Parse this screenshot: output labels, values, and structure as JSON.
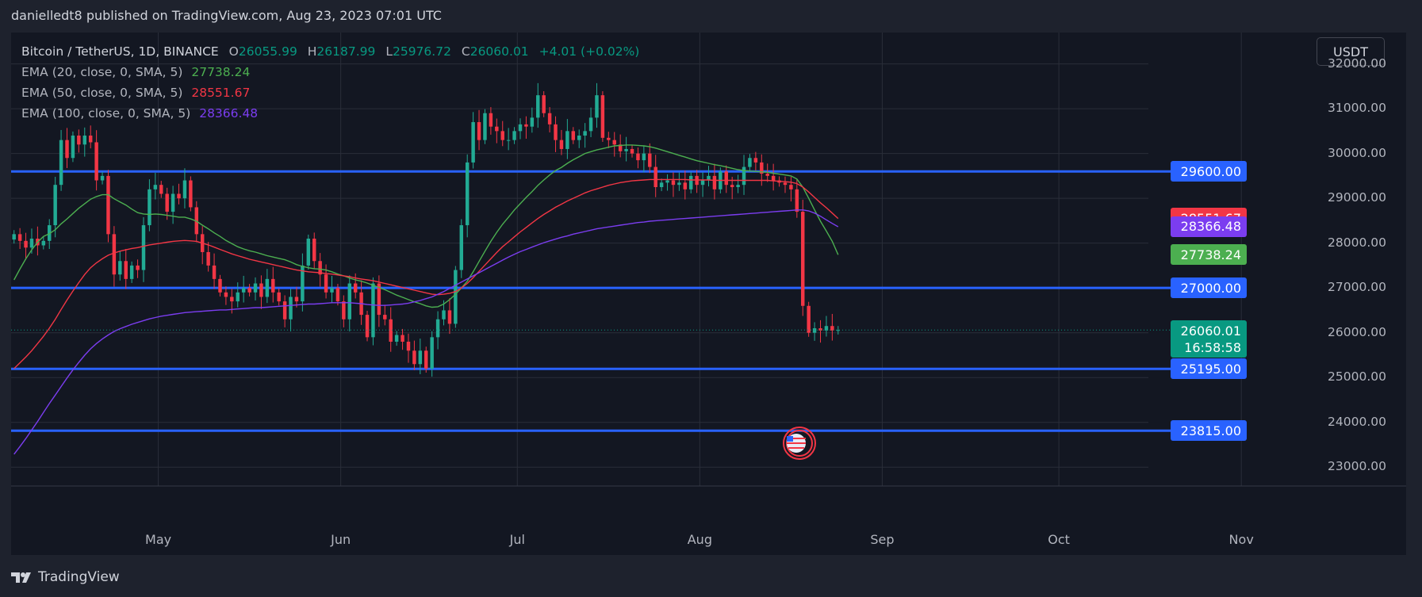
{
  "header": {
    "publisher": "danielledt8 published on TradingView.com, Aug 23, 2023 07:01 UTC"
  },
  "legend": {
    "symbol": "Bitcoin / TetherUS, 1D, BINANCE",
    "ohlc": [
      {
        "k": "O",
        "v": "26055.99"
      },
      {
        "k": "H",
        "v": "26187.99"
      },
      {
        "k": "L",
        "v": "25976.72"
      },
      {
        "k": "C",
        "v": "26060.01"
      }
    ],
    "change": "+4.01 (+0.02%)",
    "emas": [
      {
        "label": "EMA (20, close, 0, SMA, 5)",
        "value": "27738.24",
        "color": "#4caf50"
      },
      {
        "label": "EMA (50, close, 0, SMA, 5)",
        "value": "28551.67",
        "color": "#f23645"
      },
      {
        "label": "EMA (100, close, 0, SMA, 5)",
        "value": "28366.48",
        "color": "#7b3df0"
      }
    ]
  },
  "currency": "USDT",
  "footer": {
    "brand": "TradingView"
  },
  "colors": {
    "up": "#22ab94",
    "down": "#f23645",
    "level": "#2962ff",
    "background": "#131722",
    "grid": "#2a2e39"
  },
  "chart_data": {
    "type": "candlestick",
    "symbol": "BTCUSDT",
    "timeframe": "1D",
    "y_ticks": [
      "32000.00",
      "31000.00",
      "30000.00",
      "29000.00",
      "28000.00",
      "27000.00",
      "26000.00",
      "25000.00",
      "24000.00",
      "23000.00"
    ],
    "y_range": [
      22580,
      32700
    ],
    "x_range": [
      "2023-04-06",
      "2023-11-29"
    ],
    "x_ticks": [
      {
        "label": "May",
        "date": "2023-05-01"
      },
      {
        "label": "Jun",
        "date": "2023-06-01"
      },
      {
        "label": "Jul",
        "date": "2023-07-01"
      },
      {
        "label": "Aug",
        "date": "2023-08-01"
      },
      {
        "label": "Sep",
        "date": "2023-09-01"
      },
      {
        "label": "Oct",
        "date": "2023-10-01"
      },
      {
        "label": "Nov",
        "date": "2023-11-01"
      }
    ],
    "horizontal_levels": [
      {
        "value": 29600,
        "label": "29600.00"
      },
      {
        "value": 27000,
        "label": "27000.00"
      },
      {
        "value": 25195,
        "label": "25195.00"
      },
      {
        "value": 23815,
        "label": "23815.00"
      }
    ],
    "price_tags": [
      {
        "value": 28551.67,
        "label": "28551.67",
        "color": "#f23645"
      },
      {
        "value": 28366.48,
        "label": "28366.48",
        "color": "#7b3df0"
      },
      {
        "value": 27738.24,
        "label": "27738.24",
        "color": "#4caf50"
      }
    ],
    "last_price": {
      "value": 26060.01,
      "label": "26060.01",
      "countdown": "16:58:58",
      "color": "#089981"
    },
    "closes": [
      28200,
      28050,
      27900,
      28100,
      27950,
      28050,
      28400,
      29300,
      30300,
      29900,
      30400,
      30200,
      30400,
      30250,
      29400,
      29500,
      28200,
      27300,
      27600,
      27200,
      27500,
      27400,
      28400,
      29200,
      29300,
      29100,
      28700,
      29100,
      29000,
      29400,
      28800,
      28200,
      27800,
      27500,
      27200,
      26900,
      26800,
      26700,
      26900,
      27000,
      26900,
      27100,
      26800,
      27200,
      26900,
      26700,
      26300,
      26800,
      26700,
      27500,
      28100,
      27600,
      27300,
      26900,
      27000,
      26700,
      26300,
      27100,
      26900,
      26400,
      25900,
      27100,
      26400,
      26300,
      25800,
      25950,
      25800,
      25600,
      25300,
      25600,
      25200,
      25900,
      26300,
      26500,
      26200,
      27400,
      28400,
      29800,
      30700,
      30300,
      30900,
      30600,
      30500,
      30300,
      30300,
      30500,
      30650,
      30600,
      30800,
      31300,
      30900,
      30650,
      30300,
      30100,
      30500,
      30300,
      30400,
      30500,
      30800,
      31300,
      30350,
      30300,
      30200,
      30050,
      30100,
      30000,
      29850,
      30000,
      29700,
      29250,
      29350,
      29400,
      29300,
      29350,
      29200,
      29500,
      29300,
      29400,
      29500,
      29200,
      29600,
      29300,
      29250,
      29300,
      29700,
      29900,
      29800,
      29550,
      29500,
      29400,
      29350,
      29300,
      29200,
      28700,
      26600,
      26000,
      26100,
      26050,
      26150,
      26050,
      26060
    ],
    "ema20": [
      27180,
      27420,
      27650,
      27850,
      28020,
      28150,
      28210,
      28300,
      28430,
      28540,
      28660,
      28780,
      28880,
      28980,
      29040,
      29080,
      29080,
      28990,
      28920,
      28850,
      28760,
      28680,
      28650,
      28640,
      28650,
      28640,
      28620,
      28600,
      28580,
      28580,
      28540,
      28490,
      28400,
      28320,
      28230,
      28150,
      28060,
      27990,
      27920,
      27870,
      27830,
      27800,
      27760,
      27720,
      27690,
      27660,
      27630,
      27580,
      27520,
      27480,
      27450,
      27430,
      27420,
      27400,
      27360,
      27310,
      27270,
      27220,
      27180,
      27150,
      27110,
      27060,
      27010,
      26960,
      26900,
      26840,
      26790,
      26740,
      26690,
      26650,
      26600,
      26570,
      26580,
      26640,
      26740,
      26860,
      27000,
      27150,
      27360,
      27590,
      27820,
      28040,
      28240,
      28420,
      28580,
      28740,
      28880,
      29020,
      29150,
      29290,
      29410,
      29520,
      29620,
      29690,
      29780,
      29860,
      29930,
      30000,
      30040,
      30080,
      30110,
      30140,
      30170,
      30180,
      30190,
      30190,
      30180,
      30170,
      30150,
      30120,
      30080,
      30040,
      30000,
      29960,
      29920,
      29880,
      29840,
      29810,
      29780,
      29750,
      29730,
      29700,
      29670,
      29640,
      29620,
      29610,
      29600,
      29590,
      29580,
      29560,
      29540,
      29520,
      29500,
      29430,
      29250,
      29000,
      28740,
      28490,
      28270,
      28040,
      27740
    ],
    "ema50": [
      25200,
      25330,
      25460,
      25600,
      25760,
      25920,
      26100,
      26300,
      26520,
      26730,
      26930,
      27120,
      27300,
      27450,
      27560,
      27650,
      27730,
      27780,
      27820,
      27850,
      27880,
      27900,
      27930,
      27960,
      27980,
      28000,
      28020,
      28040,
      28050,
      28060,
      28050,
      28040,
      28000,
      27960,
      27910,
      27860,
      27810,
      27760,
      27720,
      27680,
      27640,
      27610,
      27580,
      27550,
      27520,
      27490,
      27460,
      27430,
      27400,
      27380,
      27360,
      27350,
      27340,
      27320,
      27310,
      27290,
      27270,
      27250,
      27220,
      27200,
      27180,
      27160,
      27130,
      27100,
      27070,
      27040,
      27010,
      26980,
      26950,
      26920,
      26890,
      26860,
      26850,
      26860,
      26880,
      26920,
      27000,
      27100,
      27230,
      27370,
      27510,
      27650,
      27790,
      27920,
      28030,
      28140,
      28250,
      28350,
      28450,
      28550,
      28640,
      28720,
      28800,
      28870,
      28940,
      29000,
      29060,
      29120,
      29170,
      29210,
      29250,
      29290,
      29320,
      29350,
      29370,
      29390,
      29400,
      29410,
      29420,
      29420,
      29420,
      29420,
      29420,
      29420,
      29420,
      29410,
      29410,
      29410,
      29410,
      29400,
      29400,
      29400,
      29400,
      29400,
      29400,
      29400,
      29400,
      29400,
      29400,
      29390,
      29380,
      29370,
      29360,
      29330,
      29250,
      29140,
      29020,
      28900,
      28790,
      28670,
      28550
    ],
    "ema100": [
      23290,
      23460,
      23640,
      23830,
      24020,
      24220,
      24420,
      24610,
      24800,
      24990,
      25170,
      25340,
      25500,
      25640,
      25760,
      25860,
      25950,
      26030,
      26090,
      26140,
      26190,
      26230,
      26270,
      26310,
      26340,
      26370,
      26390,
      26410,
      26430,
      26450,
      26460,
      26470,
      26480,
      26490,
      26500,
      26510,
      26510,
      26520,
      26530,
      26540,
      26550,
      26560,
      26560,
      26570,
      26580,
      26590,
      26600,
      26610,
      26620,
      26630,
      26640,
      26640,
      26650,
      26660,
      26670,
      26670,
      26670,
      26670,
      26660,
      26650,
      26630,
      26620,
      26610,
      26610,
      26620,
      26630,
      26640,
      26660,
      26690,
      26720,
      26760,
      26800,
      26860,
      26920,
      26990,
      27060,
      27130,
      27200,
      27270,
      27340,
      27410,
      27480,
      27550,
      27620,
      27690,
      27750,
      27810,
      27860,
      27910,
      27960,
      28010,
      28050,
      28090,
      28130,
      28160,
      28200,
      28230,
      28260,
      28290,
      28320,
      28340,
      28360,
      28380,
      28400,
      28420,
      28440,
      28460,
      28470,
      28490,
      28500,
      28510,
      28520,
      28530,
      28540,
      28550,
      28560,
      28570,
      28580,
      28590,
      28600,
      28610,
      28620,
      28630,
      28640,
      28650,
      28660,
      28670,
      28680,
      28690,
      28700,
      28710,
      28720,
      28730,
      28740,
      28740,
      28720,
      28670,
      28600,
      28520,
      28440,
      28366
    ]
  }
}
